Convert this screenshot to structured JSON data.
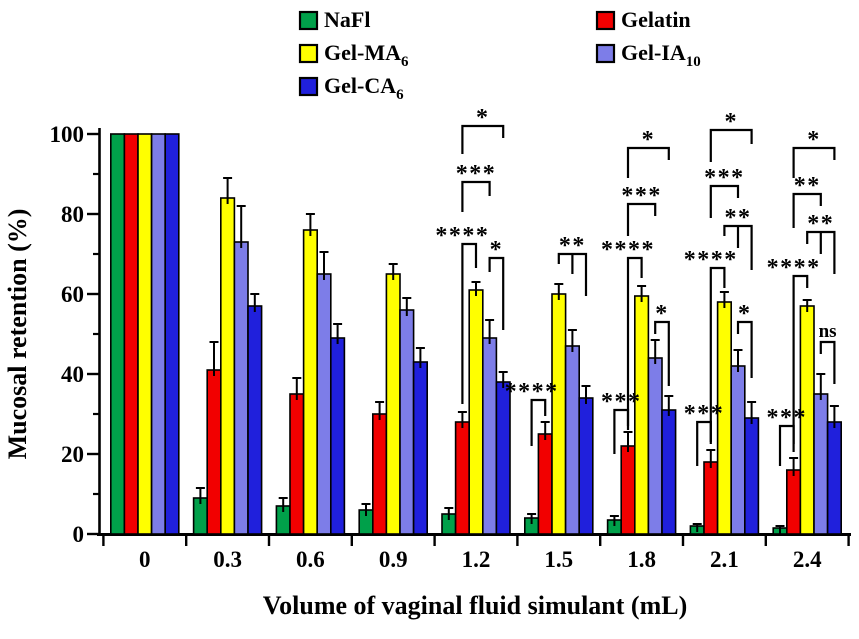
{
  "figure": {
    "background": "#ffffff",
    "stroke_color": "#000000"
  },
  "chart_data": {
    "type": "bar",
    "title": "",
    "xlabel": "Volume of vaginal fluid simulant (mL)",
    "ylabel": "Mucosal retention (%)",
    "categories": [
      "0",
      "0.3",
      "0.6",
      "0.9",
      "1.2",
      "1.5",
      "1.8",
      "2.1",
      "2.4"
    ],
    "ylim": [
      0,
      100
    ],
    "yticks": [
      0,
      20,
      40,
      60,
      80,
      100
    ],
    "y_minor_step": 10,
    "grid": false,
    "legend_position": "top",
    "series": [
      {
        "name": "NaFl",
        "sub": "",
        "color": "#00A04A",
        "values": [
          100,
          9,
          7,
          6,
          5,
          4,
          3.5,
          2,
          1.5
        ],
        "errors": [
          0,
          2.5,
          2,
          1.5,
          1.5,
          1,
          1,
          0.5,
          0.5
        ]
      },
      {
        "name": "Gelatin",
        "sub": "",
        "color": "#F20000",
        "values": [
          100,
          41,
          35,
          30,
          28,
          25,
          22,
          18,
          16
        ],
        "errors": [
          0,
          7,
          4,
          3,
          2.5,
          3,
          3.5,
          3,
          3
        ]
      },
      {
        "name": "Gel-MA",
        "sub": "6",
        "color": "#FFFF00",
        "values": [
          100,
          84,
          76,
          65,
          61,
          60,
          59.5,
          58,
          57
        ],
        "errors": [
          0,
          5,
          4,
          2.5,
          2,
          2.5,
          2.5,
          2.5,
          1.5
        ]
      },
      {
        "name": "Gel-IA",
        "sub": "10",
        "color": "#7D7DE8",
        "values": [
          100,
          73,
          65,
          56,
          49,
          47,
          44,
          42,
          35
        ],
        "errors": [
          0,
          9,
          5.5,
          3,
          4.5,
          4,
          4.5,
          4,
          5
        ]
      },
      {
        "name": "Gel-CA",
        "sub": "6",
        "color": "#2020DC",
        "values": [
          100,
          57,
          49,
          43,
          38,
          34,
          31,
          29,
          28
        ],
        "errors": [
          0,
          3,
          3.5,
          3.5,
          2.5,
          3,
          3.5,
          4,
          4
        ]
      }
    ],
    "legend_columns": [
      [
        0,
        2,
        4
      ],
      [
        1,
        3
      ]
    ],
    "significance_brackets": [
      {
        "g": 4,
        "a": 1,
        "b": 2,
        "label": "****",
        "y": 72.5,
        "da": 40,
        "db": 6
      },
      {
        "g": 4,
        "a": 1,
        "b": 3,
        "label": "***",
        "y": 88,
        "da": 7.5,
        "db": 3.5
      },
      {
        "g": 4,
        "a": 1,
        "b": 4,
        "label": "*",
        "y": 102,
        "da": 7,
        "db": 3
      },
      {
        "g": 4,
        "a": 3,
        "b": 4,
        "label": "*",
        "y": 69,
        "da": 3.5,
        "db": 18
      },
      {
        "g": 5,
        "a": 0,
        "b": 1,
        "label": "****",
        "y": 33.5,
        "da": 11.5,
        "db": 4
      },
      {
        "g": 5,
        "a": 2,
        "b": 4,
        "mid": 3,
        "label": "**",
        "y": 70,
        "da": 2.5,
        "dm": 5,
        "db": 10.5
      },
      {
        "g": 6,
        "a": 0,
        "b": 1,
        "label": "***",
        "y": 31,
        "da": 11,
        "db": 5
      },
      {
        "g": 6,
        "a": 1,
        "b": 2,
        "label": "****",
        "y": 69,
        "da": 42,
        "db": 5
      },
      {
        "g": 6,
        "a": 1,
        "b": 3,
        "label": "***",
        "y": 82.5,
        "da": 8,
        "db": 3
      },
      {
        "g": 6,
        "a": 1,
        "b": 4,
        "label": "*",
        "y": 96.5,
        "da": 7.5,
        "db": 3
      },
      {
        "g": 6,
        "a": 3,
        "b": 4,
        "label": "*",
        "y": 53,
        "da": 3,
        "db": 16
      },
      {
        "g": 7,
        "a": 0,
        "b": 1,
        "label": "***",
        "y": 28,
        "da": 11,
        "db": 5
      },
      {
        "g": 7,
        "a": 1,
        "b": 2,
        "label": "****",
        "y": 66.5,
        "da": 44,
        "db": 5
      },
      {
        "g": 7,
        "a": 1,
        "b": 3,
        "label": "***",
        "y": 87,
        "da": 8,
        "db": 3
      },
      {
        "g": 7,
        "a": 1,
        "b": 4,
        "label": "*",
        "y": 101,
        "da": 8,
        "db": 3.5
      },
      {
        "g": 7,
        "a": 2,
        "b": 4,
        "mid": 3,
        "label": "**",
        "y": 77,
        "da": 2.5,
        "dm": 5.5,
        "db": 11
      },
      {
        "g": 7,
        "a": 3,
        "b": 4,
        "label": "*",
        "y": 53,
        "da": 3,
        "db": 14
      },
      {
        "g": 8,
        "a": 0,
        "b": 1,
        "label": "***",
        "y": 27,
        "da": 10,
        "db": 4.5
      },
      {
        "g": 8,
        "a": 1,
        "b": 2,
        "label": "****",
        "y": 64.5,
        "da": 44,
        "db": 3
      },
      {
        "g": 8,
        "a": 1,
        "b": 3,
        "label": "**",
        "y": 85,
        "da": 8.5,
        "db": 3
      },
      {
        "g": 8,
        "a": 1,
        "b": 4,
        "label": "*",
        "y": 96.5,
        "da": 7.5,
        "db": 3
      },
      {
        "g": 8,
        "a": 2,
        "b": 4,
        "mid": 3,
        "label": "**",
        "y": 75.5,
        "da": 3,
        "dm": 5.5,
        "db": 10.5
      },
      {
        "g": 8,
        "a": 3,
        "b": 4,
        "label": "ns",
        "y": 48,
        "da": 3,
        "db": 10.5
      }
    ]
  }
}
